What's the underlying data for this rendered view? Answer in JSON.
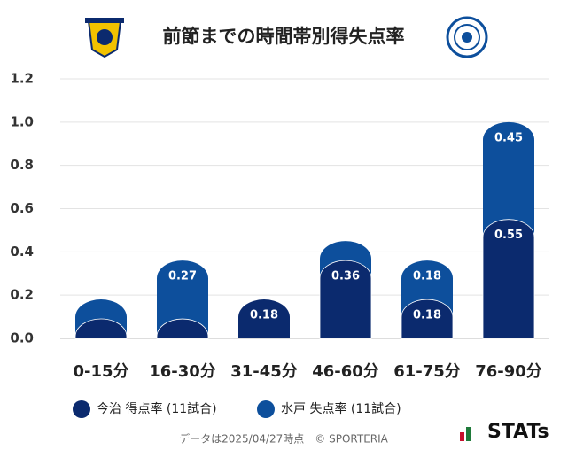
{
  "chart_data": {
    "type": "stacked_bar",
    "title": "前節までの時間帯別得失点率",
    "categories": [
      "0-15分",
      "16-30分",
      "31-45分",
      "46-60分",
      "61-75分",
      "76-90分"
    ],
    "series": [
      {
        "name": "今治 得点率 (11試合)",
        "color": "#0b2a6e",
        "values": [
          0.09,
          0.09,
          0.18,
          0.36,
          0.18,
          0.55
        ]
      },
      {
        "name": "水戸 失点率 (11試合)",
        "color": "#0d4f9c",
        "values": [
          0.09,
          0.27,
          0,
          0.09,
          0.18,
          0.45
        ]
      }
    ],
    "ylim": [
      0,
      1.2
    ],
    "yticks": [
      {
        "value": 0,
        "label": "0.0"
      },
      0.2,
      0.4,
      0.6,
      0.8,
      {
        "value": 1,
        "label": "1.0"
      },
      1.2
    ],
    "grid": true
  },
  "footer": "データは2025/04/27時点　© SPORTERIA",
  "brand": "STATs"
}
